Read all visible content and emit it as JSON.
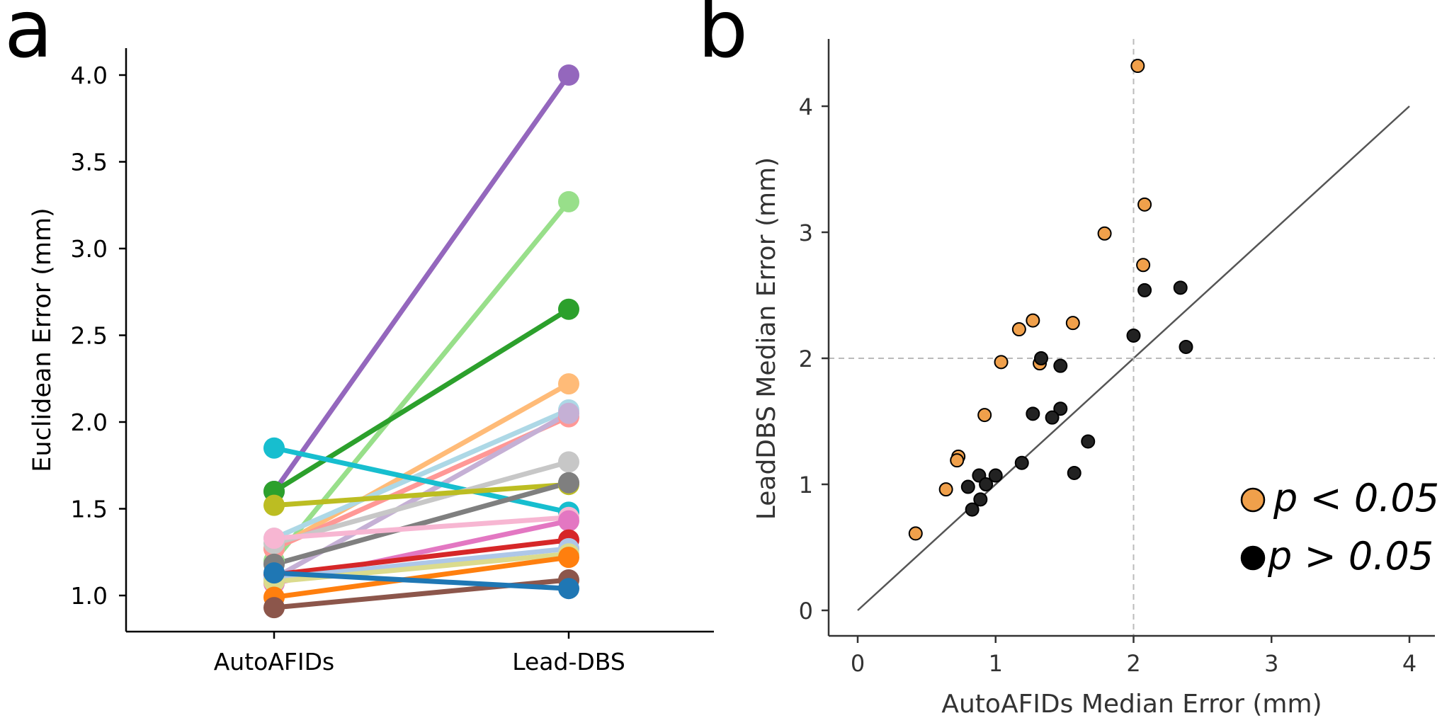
{
  "panels": {
    "a": "a",
    "b": "b"
  },
  "chart_data": [
    {
      "type": "line",
      "categories": [
        "AutoAFIDs",
        "Lead-DBS"
      ],
      "ylabel": "Euclidean Error (mm)",
      "ylim": [
        0.78,
        4.15
      ],
      "yticks": [
        "1.0",
        "1.5",
        "2.0",
        "2.5",
        "3.0",
        "3.5",
        "4.0"
      ],
      "grid": false,
      "series": [
        {
          "color": "#9467bd",
          "values": [
            1.6,
            4.0
          ]
        },
        {
          "color": "#98df8a",
          "values": [
            1.2,
            3.27
          ]
        },
        {
          "color": "#2ca02c",
          "values": [
            1.6,
            2.65
          ]
        },
        {
          "color": "#ffbb78",
          "values": [
            1.27,
            2.22
          ]
        },
        {
          "color": "#add8e6",
          "values": [
            1.33,
            2.07
          ]
        },
        {
          "color": "#ff9896",
          "values": [
            1.27,
            2.03
          ]
        },
        {
          "color": "#c5b0d5",
          "values": [
            1.1,
            2.05
          ]
        },
        {
          "color": "#17becf",
          "values": [
            1.85,
            1.48
          ]
        },
        {
          "color": "#c7c7c7",
          "values": [
            1.3,
            1.77
          ]
        },
        {
          "color": "#bcbd22",
          "values": [
            1.52,
            1.64
          ]
        },
        {
          "color": "#7f7f7f",
          "values": [
            1.18,
            1.65
          ]
        },
        {
          "color": "#f7b6d2",
          "values": [
            1.33,
            1.45
          ]
        },
        {
          "color": "#e377c2",
          "values": [
            1.07,
            1.43
          ]
        },
        {
          "color": "#d62728",
          "values": [
            1.12,
            1.32
          ]
        },
        {
          "color": "#aec7e8",
          "values": [
            1.1,
            1.27
          ]
        },
        {
          "color": "#dbdb8d",
          "values": [
            1.08,
            1.24
          ]
        },
        {
          "color": "#ff7f0e",
          "values": [
            0.99,
            1.22
          ]
        },
        {
          "color": "#8c564b",
          "values": [
            0.93,
            1.09
          ]
        },
        {
          "color": "#1f77b4",
          "values": [
            1.13,
            1.04
          ]
        }
      ]
    },
    {
      "type": "scatter",
      "xlabel": "AutoAFIDs Median Error (mm)",
      "ylabel": "LeadDBS Median Error (mm)",
      "xlim": [
        -0.2,
        4.2
      ],
      "ylim": [
        -0.2,
        4.5
      ],
      "xticks": [
        "0",
        "1",
        "2",
        "3",
        "4"
      ],
      "yticks": [
        "0",
        "1",
        "2",
        "3",
        "4"
      ],
      "reference_lines": {
        "diagonal": "y = x",
        "vertical_x": 2,
        "horizontal_y": 2
      },
      "grid": false,
      "legend": {
        "position": "bottom-right",
        "entries": [
          "p < 0.05",
          "p > 0.05"
        ]
      },
      "series": [
        {
          "name": "p < 0.05",
          "color": "#f0a04b",
          "points": [
            [
              2.03,
              4.32
            ],
            [
              2.08,
              3.22
            ],
            [
              1.79,
              2.99
            ],
            [
              2.07,
              2.74
            ],
            [
              1.27,
              2.3
            ],
            [
              1.17,
              2.23
            ],
            [
              1.56,
              2.28
            ],
            [
              1.04,
              1.97
            ],
            [
              1.32,
              1.96
            ],
            [
              0.92,
              1.55
            ],
            [
              0.73,
              1.22
            ],
            [
              0.72,
              1.19
            ],
            [
              0.64,
              0.96
            ],
            [
              0.42,
              0.61
            ]
          ]
        },
        {
          "name": "p > 0.05",
          "color": "#222222",
          "points": [
            [
              2.34,
              2.56
            ],
            [
              2.08,
              2.54
            ],
            [
              2.0,
              2.18
            ],
            [
              2.38,
              2.09
            ],
            [
              1.33,
              2.0
            ],
            [
              1.47,
              1.94
            ],
            [
              1.27,
              1.56
            ],
            [
              1.47,
              1.6
            ],
            [
              1.41,
              1.53
            ],
            [
              1.67,
              1.34
            ],
            [
              1.19,
              1.17
            ],
            [
              1.57,
              1.09
            ],
            [
              0.8,
              0.98
            ],
            [
              0.88,
              1.07
            ],
            [
              1.0,
              1.07
            ],
            [
              0.93,
              1.0
            ],
            [
              0.89,
              0.88
            ],
            [
              0.83,
              0.8
            ]
          ]
        }
      ]
    }
  ]
}
